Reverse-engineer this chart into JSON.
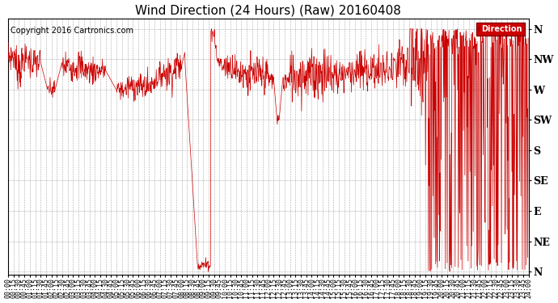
{
  "title": "Wind Direction (24 Hours) (Raw) 20160408",
  "copyright": "Copyright 2016 Cartronics.com",
  "legend_label": "Direction",
  "line_color": "#CC0000",
  "bg_color": "#FFFFFF",
  "plot_bg": "#FFFFFF",
  "grid_color": "#AAAAAA",
  "ytick_labels": [
    "N",
    "NW",
    "W",
    "SW",
    "S",
    "SE",
    "E",
    "NE",
    "N"
  ],
  "ytick_values": [
    360,
    315,
    270,
    225,
    180,
    135,
    90,
    45,
    0
  ],
  "ylim": [
    -5,
    375
  ],
  "title_fontsize": 11,
  "tick_fontsize": 6,
  "copyright_fontsize": 7
}
